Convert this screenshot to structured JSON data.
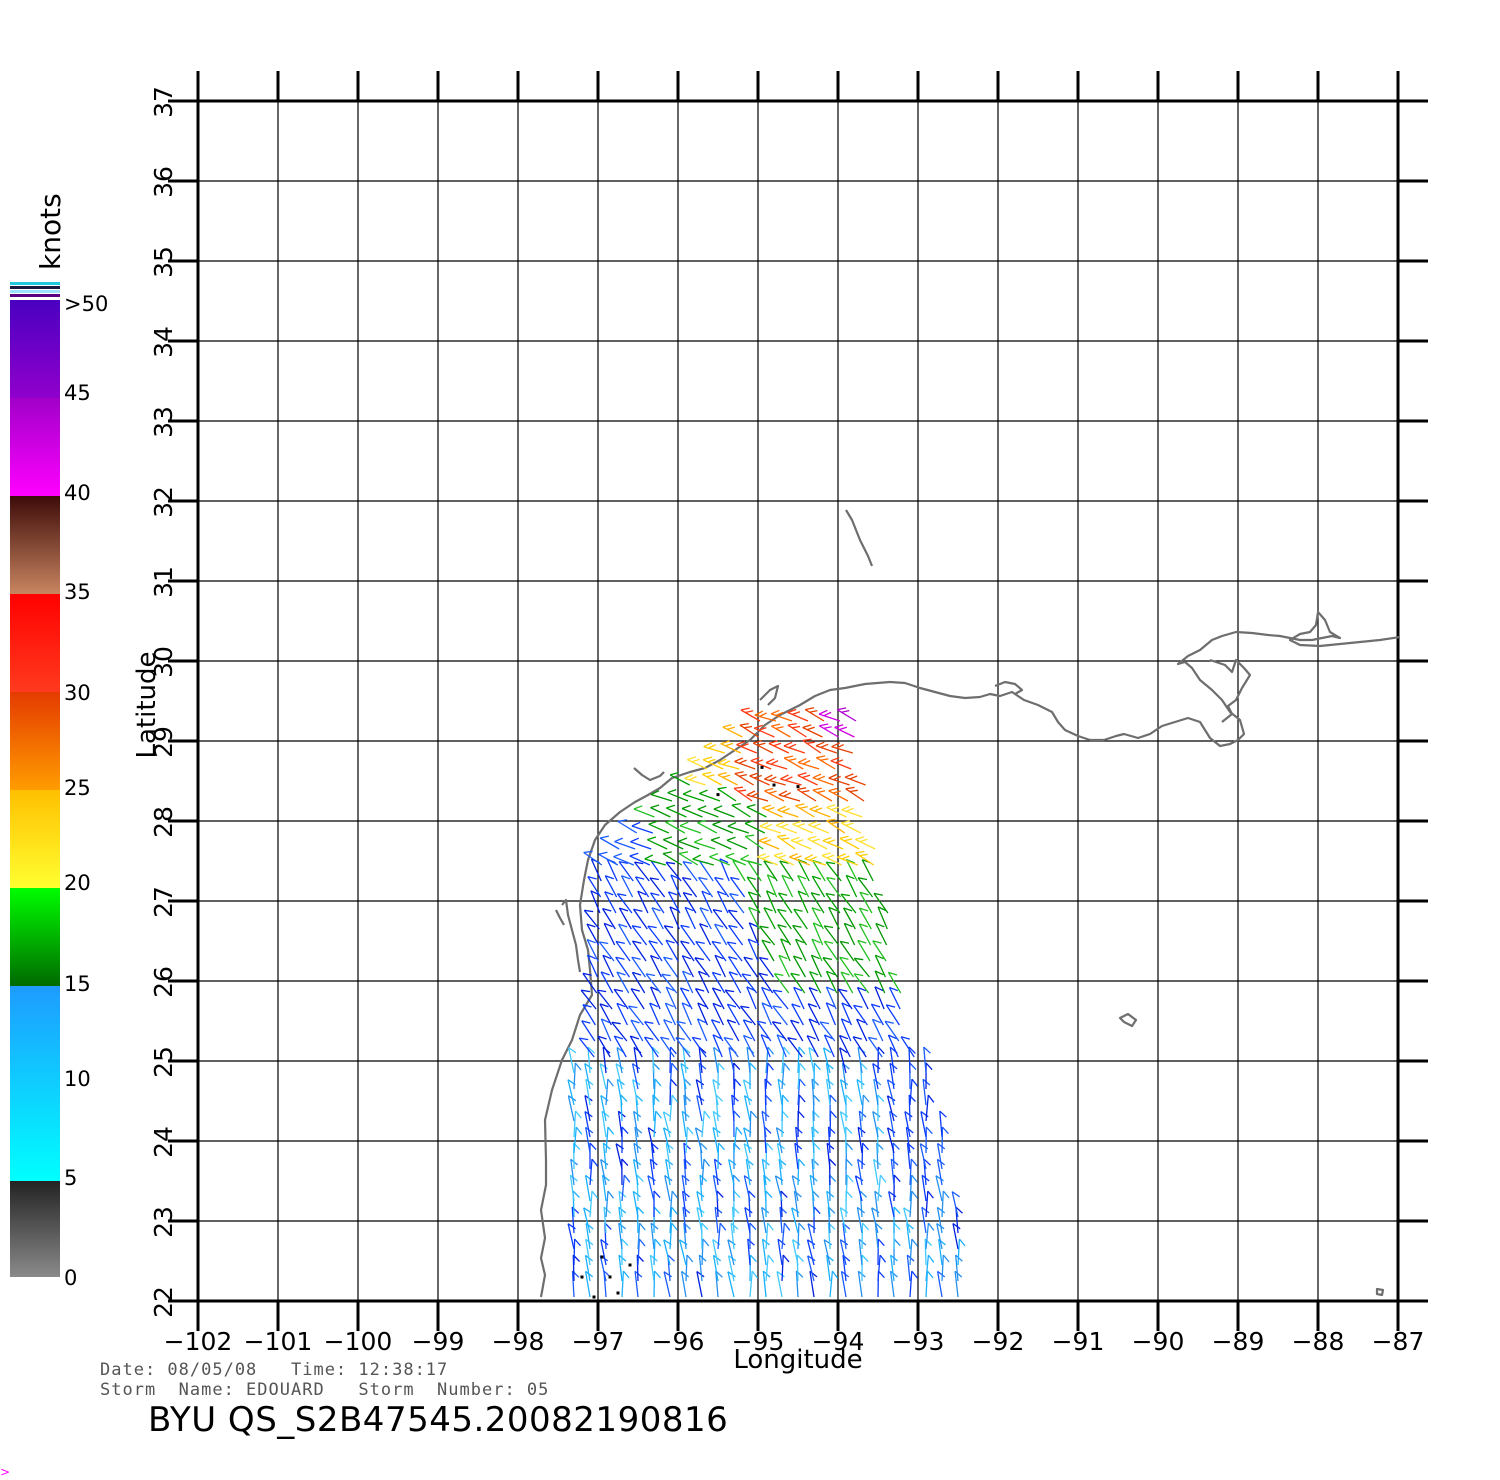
{
  "map": {
    "xlabel": "Longitude",
    "ylabel": "Latitude",
    "lon_range": [
      -102,
      -87
    ],
    "lat_range": [
      22,
      37
    ],
    "lon_ticks": [
      "−102",
      "−101",
      "−100",
      "−99",
      "−98",
      "−97",
      "−96",
      "−95",
      "−94",
      "−93",
      "−92",
      "−91",
      "−90",
      "−89",
      "−88",
      "−87"
    ],
    "lat_ticks": [
      "22",
      "23",
      "24",
      "25",
      "26",
      "27",
      "28",
      "29",
      "30",
      "31",
      "32",
      "33",
      "34",
      "35",
      "36",
      "37"
    ],
    "grid": true,
    "coastline_color": "#6e6e6e"
  },
  "colorbar": {
    "unit": "knots",
    "labels": [
      "0",
      "5",
      "10",
      "15",
      "20",
      "25",
      "30",
      "35",
      "40",
      "45",
      ">50"
    ]
  },
  "info": {
    "line1": "Date: 08/05/08   Time: 12:38:17",
    "line2": "Storm  Name: EDOUARD   Storm  Number: 05",
    "product": "BYU  QS_S2B47545.20082190816"
  },
  "corner_mark": ">"
}
